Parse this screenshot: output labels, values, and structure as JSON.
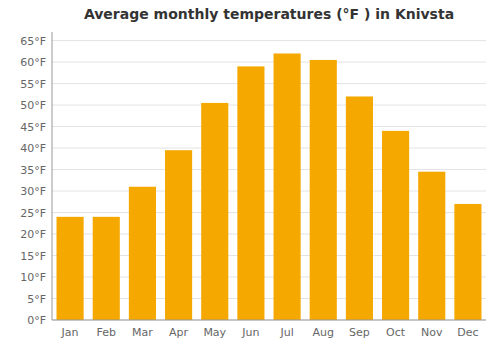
{
  "chart_data": {
    "type": "bar",
    "title": "Average monthly temperatures (°F ) in Knivsta",
    "categories": [
      "Jan",
      "Feb",
      "Mar",
      "Apr",
      "May",
      "Jun",
      "Jul",
      "Aug",
      "Sep",
      "Oct",
      "Nov",
      "Dec"
    ],
    "values": [
      24,
      24,
      31,
      39.5,
      50.5,
      59,
      62,
      60.5,
      52,
      44,
      34.5,
      27
    ],
    "color": "#F5A800",
    "ylim": [
      0,
      67
    ],
    "yticks": [
      {
        "value": 0,
        "label": "0°F"
      },
      {
        "value": 5,
        "label": "5°F"
      },
      {
        "value": 10,
        "label": "10°F"
      },
      {
        "value": 15,
        "label": "15°F"
      },
      {
        "value": 20,
        "label": "20°F"
      },
      {
        "value": 25,
        "label": "25°F"
      },
      {
        "value": 30,
        "label": "30°F"
      },
      {
        "value": 35,
        "label": "35°F"
      },
      {
        "value": 40,
        "label": "40°F"
      },
      {
        "value": 45,
        "label": "45°F"
      },
      {
        "value": 50,
        "label": "50°F"
      },
      {
        "value": 55,
        "label": "55°F"
      },
      {
        "value": 60,
        "label": "60°F"
      },
      {
        "value": 65,
        "label": "65°F"
      }
    ],
    "grid": true
  }
}
